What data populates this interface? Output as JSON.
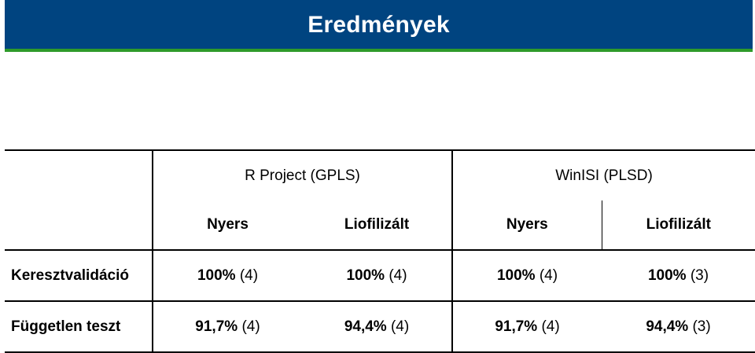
{
  "header": {
    "title": "Eredmények"
  },
  "table": {
    "groups": [
      "R Project (GPLS)",
      "WinISI (PLSD)"
    ],
    "subheaders": [
      "Nyers",
      "Liofilizált",
      "Nyers",
      "Liofilizált"
    ],
    "rows": [
      {
        "label": "Keresztvalidáció",
        "cells": [
          {
            "value": "100%",
            "count": "(4)"
          },
          {
            "value": "100%",
            "count": "(4)"
          },
          {
            "value": "100%",
            "count": "(4)"
          },
          {
            "value": "100%",
            "count": "(3)"
          }
        ]
      },
      {
        "label": "Független teszt",
        "cells": [
          {
            "value": "91,7%",
            "count": "(4)"
          },
          {
            "value": "94,4%",
            "count": "(4)"
          },
          {
            "value": "91,7%",
            "count": "(4)"
          },
          {
            "value": "94,4%",
            "count": "(3)"
          }
        ]
      }
    ]
  }
}
